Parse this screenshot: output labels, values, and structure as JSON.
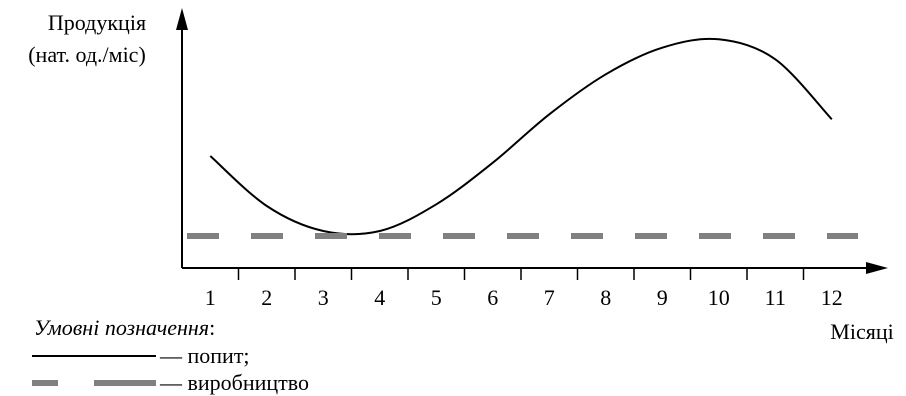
{
  "chart_data": {
    "type": "line",
    "ylabel_lines": [
      "Продукція",
      "(нат. од./міс)"
    ],
    "xlabel": "Місяці",
    "categories": [
      "1",
      "2",
      "3",
      "4",
      "5",
      "6",
      "7",
      "8",
      "9",
      "10",
      "11",
      "12"
    ],
    "series": [
      {
        "name": "попит",
        "style": "solid",
        "color": "#000000",
        "values": [
          96,
          36,
          6,
          6,
          38,
          88,
          146,
          194,
          226,
          236,
          212,
          140
        ]
      },
      {
        "name": "виробництво",
        "style": "dashed",
        "color": "#808080",
        "values": [
          0,
          0,
          0,
          0,
          0,
          0,
          0,
          0,
          0,
          0,
          0,
          0
        ]
      }
    ],
    "grid": false,
    "legend": {
      "title": "Умовні позначення",
      "title_suffix": ":",
      "placement": "bottom-left",
      "entries": [
        {
          "sample": "solid",
          "text": "— попит;"
        },
        {
          "sample": "dashed",
          "text": "— виробництво"
        }
      ]
    }
  }
}
